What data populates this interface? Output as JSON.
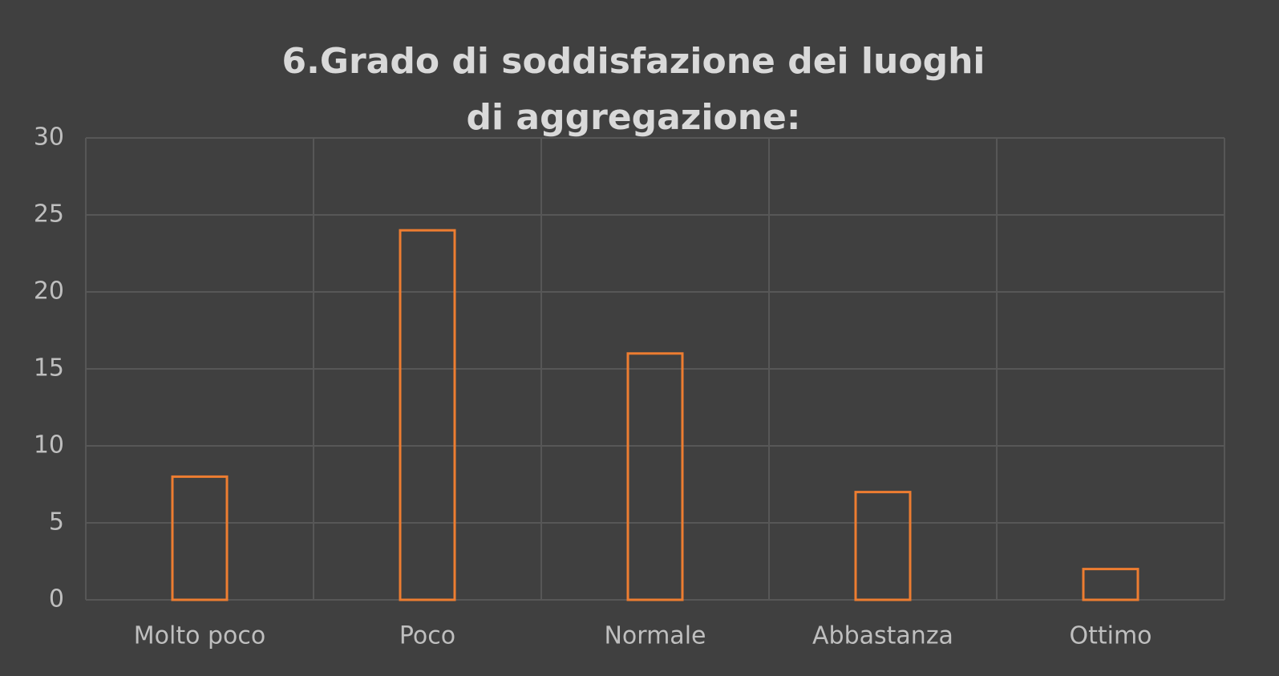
{
  "chart_data": {
    "type": "bar",
    "title": "6.Grado di soddisfazione dei luoghi di aggregazione:",
    "categories": [
      "Molto poco",
      "Poco",
      "Normale",
      "Abbastanza",
      "Ottimo"
    ],
    "values": [
      8,
      24,
      16,
      7,
      2
    ],
    "color": "#ed7d31",
    "ylim": [
      0,
      30
    ],
    "yticks": [
      0,
      5,
      10,
      15,
      20,
      25,
      30
    ],
    "grid": true
  }
}
